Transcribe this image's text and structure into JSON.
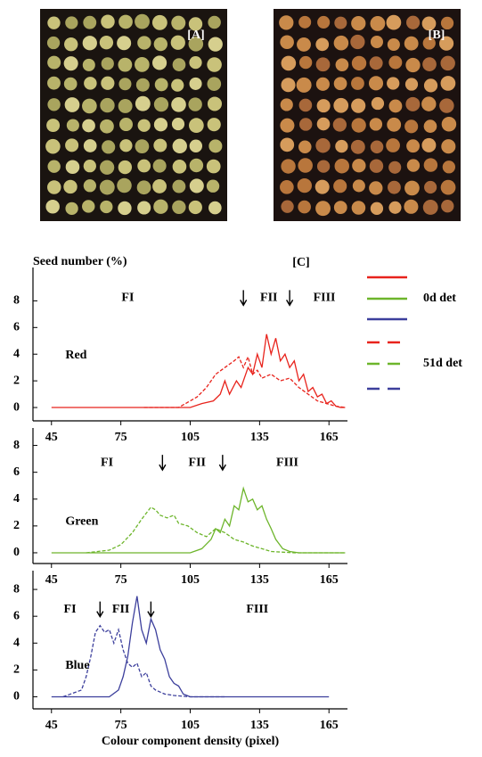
{
  "figure": {
    "panel_labels": [
      "[A]",
      "[B]",
      "[C]"
    ]
  },
  "chart_data": [
    {
      "type": "line",
      "ylabel": "Seed number (%)",
      "channel": {
        "text": "Red",
        "x": 51,
        "y": 3.9
      },
      "annotations": [
        {
          "text": "FI",
          "x": 78,
          "y": 8.2
        },
        {
          "text": "FII",
          "x": 139,
          "y": 8.2
        },
        {
          "text": "FIII",
          "x": 163,
          "y": 8.2
        }
      ],
      "arrows": [
        128,
        148
      ],
      "xlim": [
        37,
        173
      ],
      "xticks": [
        45,
        75,
        105,
        135,
        165
      ],
      "ylim": [
        -1,
        10.5
      ],
      "yticks": [
        0,
        2,
        4,
        6,
        8
      ],
      "series": [
        {
          "name": "0d det",
          "color": "#e8231c",
          "dashed": false,
          "x": [
            45,
            100,
            105,
            110,
            115,
            118,
            120,
            122,
            125,
            127,
            130,
            132,
            134,
            136,
            138,
            140,
            142,
            144,
            146,
            148,
            150,
            152,
            154,
            156,
            158,
            160,
            162,
            164,
            166,
            168,
            170,
            172
          ],
          "values": [
            0,
            0,
            0,
            0.3,
            0.5,
            1,
            2,
            1,
            2,
            1.5,
            3,
            2.5,
            4,
            3,
            5.5,
            4,
            5.2,
            3.5,
            4,
            3,
            3.5,
            2,
            2.5,
            1.2,
            1.5,
            0.8,
            1,
            0.3,
            0.5,
            0.1,
            0,
            0
          ]
        },
        {
          "name": "51d det",
          "color": "#e8231c",
          "dashed": true,
          "x": [
            85,
            100,
            104,
            108,
            112,
            116,
            120,
            124,
            126,
            128,
            130,
            132,
            134,
            136,
            140,
            144,
            148,
            152,
            156,
            160,
            164,
            168,
            172
          ],
          "values": [
            0,
            0,
            0.4,
            0.8,
            1.5,
            2.5,
            3,
            3.5,
            3.8,
            3,
            3.8,
            2.5,
            2.8,
            2.2,
            2.5,
            2,
            2.2,
            1.5,
            1,
            0.5,
            0.3,
            0.1,
            0
          ]
        }
      ]
    },
    {
      "type": "line",
      "channel": {
        "text": "Green",
        "x": 51,
        "y": 2.3
      },
      "annotations": [
        {
          "text": "FI",
          "x": 69,
          "y": 6.7
        },
        {
          "text": "FII",
          "x": 108,
          "y": 6.7
        },
        {
          "text": "FIII",
          "x": 147,
          "y": 6.7
        }
      ],
      "arrows": [
        93,
        119
      ],
      "xlim": [
        37,
        173
      ],
      "xticks": [
        45,
        75,
        105,
        135,
        165
      ],
      "ylim": [
        -0.8,
        9.3
      ],
      "yticks": [
        0,
        2,
        4,
        6,
        8
      ],
      "series": [
        {
          "name": "0d det",
          "color": "#6db52b",
          "dashed": false,
          "x": [
            45,
            105,
            110,
            114,
            116,
            118,
            120,
            122,
            124,
            126,
            128,
            130,
            132,
            134,
            136,
            138,
            140,
            142,
            145,
            148,
            152,
            172
          ],
          "values": [
            0,
            0,
            0.3,
            1,
            1.8,
            1.5,
            2.5,
            2,
            3.5,
            3.2,
            4.8,
            3.8,
            4,
            3.2,
            3.5,
            2.5,
            1.8,
            1,
            0.3,
            0.1,
            0,
            0
          ]
        },
        {
          "name": "51d det",
          "color": "#6db52b",
          "dashed": true,
          "x": [
            60,
            70,
            75,
            80,
            84,
            88,
            90,
            92,
            95,
            98,
            100,
            104,
            108,
            112,
            116,
            120,
            124,
            128,
            132,
            136,
            140,
            150,
            172
          ],
          "values": [
            0,
            0.2,
            0.6,
            1.5,
            2.5,
            3.4,
            3.2,
            2.8,
            2.6,
            2.8,
            2.2,
            2,
            1.5,
            1.2,
            1.8,
            1.5,
            1,
            0.8,
            0.5,
            0.3,
            0.1,
            0,
            0
          ]
        }
      ]
    },
    {
      "type": "line",
      "xlabel": "Colour component density (pixel)",
      "channel": {
        "text": "Blue",
        "x": 51,
        "y": 2.3
      },
      "annotations": [
        {
          "text": "FI",
          "x": 53,
          "y": 6.5
        },
        {
          "text": "FII",
          "x": 75,
          "y": 6.5
        },
        {
          "text": "FIII",
          "x": 134,
          "y": 6.5
        }
      ],
      "arrows": [
        66,
        88
      ],
      "xlim": [
        37,
        173
      ],
      "xticks": [
        45,
        75,
        105,
        135,
        165
      ],
      "ylim": [
        -0.9,
        9.4
      ],
      "yticks": [
        0,
        2,
        4,
        6,
        8
      ],
      "series": [
        {
          "name": "0d det",
          "color": "#3c3f9c",
          "dashed": false,
          "x": [
            45,
            70,
            74,
            76,
            78,
            80,
            82,
            84,
            86,
            88,
            90,
            92,
            94,
            96,
            98,
            100,
            102,
            105,
            165
          ],
          "values": [
            0,
            0,
            0.5,
            1.5,
            3,
            5.5,
            7.5,
            5,
            4,
            5.8,
            5,
            3.5,
            2.8,
            1.5,
            1,
            0.8,
            0.2,
            0,
            0
          ]
        },
        {
          "name": "51d det",
          "color": "#3c3f9c",
          "dashed": true,
          "x": [
            50,
            58,
            60,
            62,
            64,
            66,
            68,
            70,
            72,
            74,
            76,
            78,
            80,
            82,
            84,
            86,
            88,
            90,
            94,
            98,
            105,
            120
          ],
          "values": [
            0,
            0.5,
            1.5,
            3,
            4.8,
            5.3,
            4.8,
            5,
            4,
            5,
            3.5,
            2.5,
            2.2,
            2.5,
            1.5,
            1.8,
            0.8,
            0.5,
            0.2,
            0.1,
            0,
            0
          ]
        }
      ]
    }
  ]
}
